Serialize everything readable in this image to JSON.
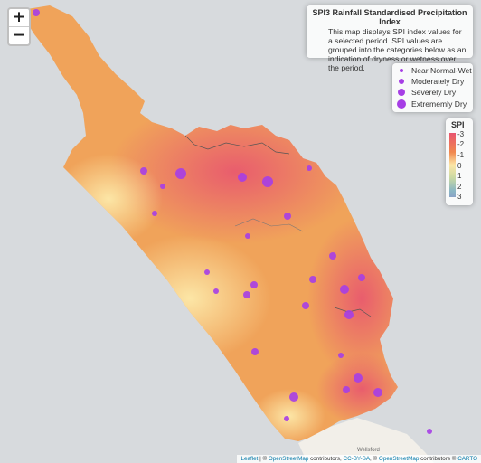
{
  "zoom": {
    "in_label": "+",
    "out_label": "−"
  },
  "info": {
    "title": "SPI3 Rainfall Standardised Precipitation Index",
    "description": "This map displays SPI index values for a selected period. SPI values are grouped into the categories below as an indication of dryness or wetness over the period."
  },
  "legend": {
    "items": [
      {
        "label": "Near Normal-Wet",
        "size": 2
      },
      {
        "label": "Moderately Dry",
        "size": 3
      },
      {
        "label": "Severely Dry",
        "size": 4
      },
      {
        "label": "Extrememly Dry",
        "size": 5
      }
    ],
    "color": "#a63ee5"
  },
  "spi_scale": {
    "title": "SPI",
    "ticks": [
      "-3",
      "-2",
      "-1",
      "0",
      "1",
      "2",
      "3"
    ]
  },
  "colors": {
    "wet": "#8aa3c6",
    "neutral": "#fce6a6",
    "dry": "#f0884f",
    "very_dry": "#e8556f",
    "station": "#a63ee5",
    "sea": "#d7dadd",
    "land": "#f2efe9"
  },
  "place_label": "Wellsford",
  "attribution": {
    "leaflet": "Leaflet",
    "osm": "OpenStreetMap",
    "ccbysa": "CC-BY-SA",
    "carto": "CARTO",
    "sep1": " | © ",
    "text1": " contributors, ",
    "text2": ", © ",
    "text3": " contributors © "
  }
}
